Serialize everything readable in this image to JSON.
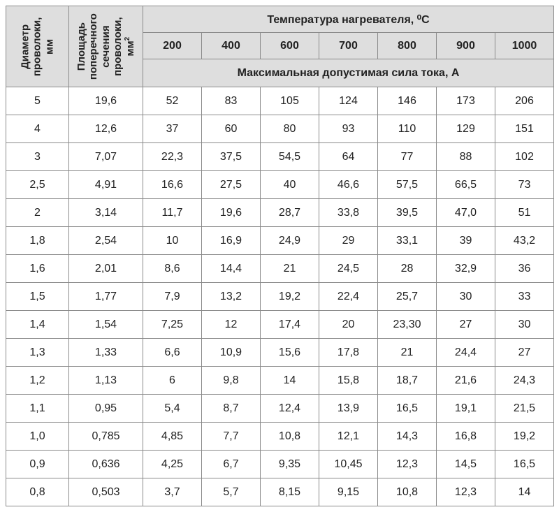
{
  "headers": {
    "diameter": "Диаметр\nпроволоки,\nмм",
    "area": "Площадь\nпоперечного\nсечения\nпроволоки,\nмм²",
    "temp_title": "Температура нагревателя, ⁰С",
    "current_title": "Максимальная допустимая сила тока, А",
    "temps": [
      "200",
      "400",
      "600",
      "700",
      "800",
      "900",
      "1000"
    ]
  },
  "rows": [
    {
      "d": "5",
      "a": "19,6",
      "v": [
        "52",
        "83",
        "105",
        "124",
        "146",
        "173",
        "206"
      ]
    },
    {
      "d": "4",
      "a": "12,6",
      "v": [
        "37",
        "60",
        "80",
        "93",
        "110",
        "129",
        "151"
      ]
    },
    {
      "d": "3",
      "a": "7,07",
      "v": [
        "22,3",
        "37,5",
        "54,5",
        "64",
        "77",
        "88",
        "102"
      ]
    },
    {
      "d": "2,5",
      "a": "4,91",
      "v": [
        "16,6",
        "27,5",
        "40",
        "46,6",
        "57,5",
        "66,5",
        "73"
      ]
    },
    {
      "d": "2",
      "a": "3,14",
      "v": [
        "11,7",
        "19,6",
        "28,7",
        "33,8",
        "39,5",
        "47,0",
        "51"
      ]
    },
    {
      "d": "1,8",
      "a": "2,54",
      "v": [
        "10",
        "16,9",
        "24,9",
        "29",
        "33,1",
        "39",
        "43,2"
      ]
    },
    {
      "d": "1,6",
      "a": "2,01",
      "v": [
        "8,6",
        "14,4",
        "21",
        "24,5",
        "28",
        "32,9",
        "36"
      ]
    },
    {
      "d": "1,5",
      "a": "1,77",
      "v": [
        "7,9",
        "13,2",
        "19,2",
        "22,4",
        "25,7",
        "30",
        "33"
      ]
    },
    {
      "d": "1,4",
      "a": "1,54",
      "v": [
        "7,25",
        "12",
        "17,4",
        "20",
        "23,30",
        "27",
        "30"
      ]
    },
    {
      "d": "1,3",
      "a": "1,33",
      "v": [
        "6,6",
        "10,9",
        "15,6",
        "17,8",
        "21",
        "24,4",
        "27"
      ]
    },
    {
      "d": "1,2",
      "a": "1,13",
      "v": [
        "6",
        "9,8",
        "14",
        "15,8",
        "18,7",
        "21,6",
        "24,3"
      ]
    },
    {
      "d": "1,1",
      "a": "0,95",
      "v": [
        "5,4",
        "8,7",
        "12,4",
        "13,9",
        "16,5",
        "19,1",
        "21,5"
      ]
    },
    {
      "d": "1,0",
      "a": "0,785",
      "v": [
        "4,85",
        "7,7",
        "10,8",
        "12,1",
        "14,3",
        "16,8",
        "19,2"
      ]
    },
    {
      "d": "0,9",
      "a": "0,636",
      "v": [
        "4,25",
        "6,7",
        "9,35",
        "10,45",
        "12,3",
        "14,5",
        "16,5"
      ]
    },
    {
      "d": "0,8",
      "a": "0,503",
      "v": [
        "3,7",
        "5,7",
        "8,15",
        "9,15",
        "10,8",
        "12,3",
        "14"
      ]
    }
  ]
}
